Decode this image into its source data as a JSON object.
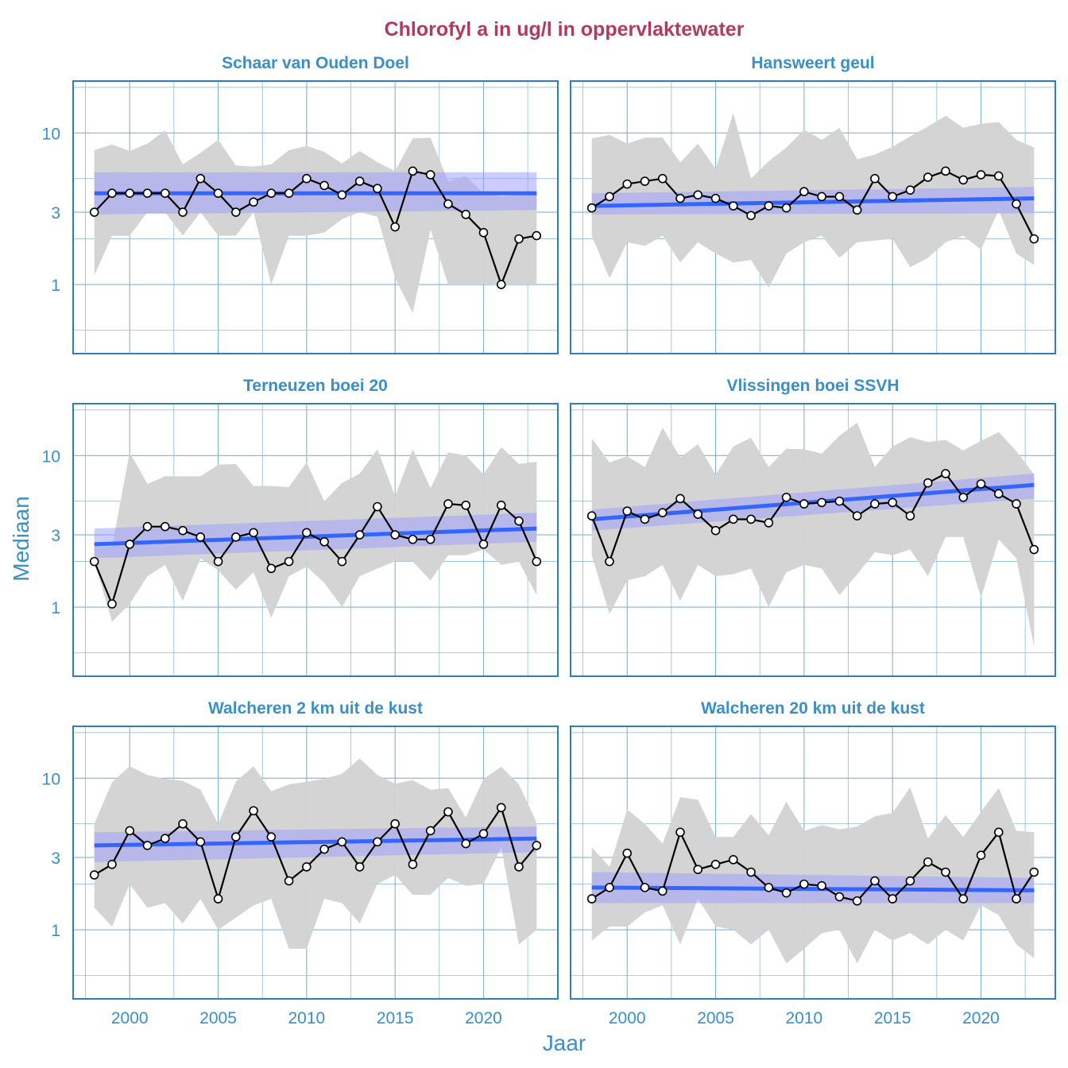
{
  "title": "Chlorofyl a in ug/l in oppervlaktewater",
  "xlabel": "Jaar",
  "ylabel": "Mediaan",
  "colors": {
    "title": "#b23a5e",
    "text": "#3a8fc8",
    "grid": "#7fb3d5",
    "frame": "#2f7fb5",
    "band": "#d3d3d3",
    "trend": "#3366ff",
    "trend_ci": "#9999ff",
    "line": "#000000",
    "point_fill": "#ffffff"
  },
  "chart_data": {
    "type": "line",
    "y_scale": "log",
    "ylim": [
      0.35,
      22
    ],
    "xlim": [
      1996.8,
      2024.2
    ],
    "x_ticks": [
      2000,
      2005,
      2010,
      2015,
      2020
    ],
    "x_tick_labels": [
      "2000",
      "2005",
      "2010",
      "2015",
      "2020"
    ],
    "y_ticks": [
      1,
      3,
      10
    ],
    "y_tick_labels": [
      "1",
      "3",
      "10"
    ],
    "grid": true,
    "years": [
      1998,
      1999,
      2000,
      2001,
      2002,
      2003,
      2004,
      2005,
      2006,
      2007,
      2008,
      2009,
      2010,
      2011,
      2012,
      2013,
      2014,
      2015,
      2016,
      2017,
      2018,
      2019,
      2020,
      2021,
      2022,
      2023
    ],
    "panels": [
      {
        "name": "Schaar van Ouden Doel",
        "median": [
          3.0,
          4.0,
          4.0,
          4.0,
          4.0,
          3.0,
          5.0,
          4.0,
          3.0,
          3.5,
          4.0,
          4.0,
          5.0,
          4.5,
          3.9,
          4.8,
          4.3,
          2.4,
          5.6,
          5.3,
          3.4,
          2.9,
          2.2,
          1.0,
          2.0,
          2.1
        ],
        "lower": [
          1.15,
          2.1,
          2.1,
          3.0,
          3.0,
          2.1,
          3.0,
          2.1,
          2.1,
          3.0,
          1.0,
          2.1,
          2.1,
          2.2,
          2.7,
          3.0,
          2.8,
          1.1,
          0.65,
          2.3,
          1.0,
          1.0,
          1.0,
          1.0,
          1.0,
          1.0
        ],
        "upper": [
          7.7,
          8.4,
          7.6,
          8.5,
          10.4,
          6.2,
          7.4,
          9.0,
          6.1,
          6.0,
          6.2,
          7.7,
          8.2,
          7.5,
          6.3,
          7.6,
          6.4,
          5.6,
          9.2,
          9.3,
          4.8,
          5.2,
          4.0,
          3.8,
          3.9,
          4.1
        ],
        "trend": [
          4.0,
          4.0
        ],
        "trend_lower": [
          2.9,
          3.1
        ],
        "trend_upper": [
          5.5,
          5.5
        ]
      },
      {
        "name": "Hansweert geul",
        "median": [
          3.2,
          3.8,
          4.6,
          4.8,
          5.0,
          3.7,
          3.9,
          3.7,
          3.3,
          2.85,
          3.3,
          3.2,
          4.1,
          3.8,
          3.8,
          3.1,
          5.0,
          3.8,
          4.2,
          5.1,
          5.6,
          4.9,
          5.3,
          5.2,
          3.4,
          2.0
        ],
        "lower": [
          2.1,
          1.1,
          1.9,
          1.8,
          2.1,
          1.4,
          1.9,
          1.6,
          1.4,
          1.45,
          0.95,
          1.6,
          1.9,
          2.1,
          1.5,
          1.9,
          1.95,
          2.0,
          1.3,
          1.5,
          1.9,
          2.1,
          1.7,
          3.1,
          1.6,
          1.35
        ],
        "upper": [
          9.2,
          9.7,
          8.5,
          9.3,
          9.3,
          6.4,
          8.5,
          5.8,
          13.5,
          5.0,
          6.5,
          8.0,
          10.5,
          9.0,
          10.8,
          6.7,
          7.2,
          8.1,
          9.5,
          11.0,
          13.0,
          10.8,
          11.5,
          11.8,
          9.0,
          8.0
        ],
        "trend": [
          3.3,
          3.7
        ],
        "trend_lower": [
          2.9,
          2.95
        ],
        "trend_upper": [
          4.0,
          4.4
        ]
      },
      {
        "name": "Terneuzen boei 20",
        "median": [
          2.0,
          1.05,
          2.6,
          3.4,
          3.4,
          3.2,
          2.9,
          2.0,
          2.9,
          3.1,
          1.8,
          2.0,
          3.1,
          2.7,
          2.0,
          3.0,
          4.6,
          3.0,
          2.8,
          2.8,
          4.8,
          4.7,
          2.6,
          4.7,
          3.7,
          2.0
        ],
        "lower": [
          2.0,
          0.8,
          1.05,
          1.6,
          1.9,
          1.1,
          2.1,
          1.75,
          1.3,
          1.7,
          0.85,
          1.6,
          1.85,
          1.45,
          1.0,
          1.6,
          1.8,
          2.0,
          2.0,
          1.5,
          2.2,
          2.2,
          2.4,
          1.9,
          2.0,
          1.2
        ],
        "upper": [
          2.5,
          2.5,
          10.5,
          6.5,
          7.3,
          7.3,
          7.3,
          8.7,
          8.8,
          6.3,
          6.3,
          6.2,
          9.0,
          5.0,
          6.6,
          7.6,
          11.0,
          5.4,
          11.0,
          6.1,
          10.5,
          10.0,
          7.5,
          11.4,
          8.8,
          9.1
        ],
        "trend": [
          2.6,
          3.3
        ],
        "trend_lower": [
          2.1,
          2.7
        ],
        "trend_upper": [
          3.3,
          4.2
        ]
      },
      {
        "name": "Vlissingen boei SSVH",
        "median": [
          4.0,
          2.0,
          4.3,
          3.8,
          4.2,
          5.2,
          4.1,
          3.2,
          3.8,
          3.8,
          3.6,
          5.3,
          4.8,
          4.9,
          5.0,
          4.0,
          4.8,
          4.9,
          4.0,
          6.6,
          7.6,
          5.3,
          6.5,
          5.6,
          4.8,
          2.4
        ],
        "lower": [
          2.2,
          0.9,
          1.5,
          1.6,
          1.9,
          1.1,
          1.9,
          1.6,
          1.65,
          1.8,
          1.0,
          1.7,
          1.9,
          1.8,
          1.2,
          1.65,
          2.3,
          2.2,
          2.4,
          1.6,
          2.9,
          2.9,
          1.15,
          2.8,
          2.1,
          0.55
        ],
        "upper": [
          13.0,
          9.0,
          9.9,
          8.4,
          15.3,
          9.7,
          11.9,
          7.5,
          11.5,
          13.1,
          8.4,
          11.1,
          11.0,
          10.3,
          13.5,
          16.5,
          8.4,
          11.5,
          13.2,
          12.3,
          12.7,
          10.8,
          12.5,
          14.3,
          10.7,
          7.5
        ],
        "trend": [
          3.8,
          6.4
        ],
        "trend_lower": [
          3.2,
          5.2
        ],
        "trend_upper": [
          4.4,
          7.6
        ]
      },
      {
        "name": "Walcheren 2 km uit de kust",
        "median": [
          2.3,
          2.7,
          4.5,
          3.6,
          4.0,
          5.0,
          3.8,
          1.6,
          4.1,
          6.1,
          4.1,
          2.1,
          2.6,
          3.4,
          3.8,
          2.6,
          3.8,
          5.0,
          2.7,
          4.5,
          6.0,
          3.7,
          4.3,
          6.4,
          2.6,
          3.6
        ],
        "lower": [
          1.4,
          1.05,
          2.0,
          1.4,
          1.5,
          1.1,
          1.6,
          1.0,
          1.2,
          1.45,
          1.6,
          0.75,
          0.75,
          1.6,
          1.5,
          1.1,
          2.0,
          2.3,
          1.7,
          1.7,
          2.2,
          1.95,
          2.0,
          3.5,
          0.8,
          1.0
        ],
        "upper": [
          5.0,
          9.4,
          12.0,
          10.5,
          9.9,
          9.6,
          8.4,
          5.0,
          9.5,
          12.0,
          8.2,
          9.1,
          9.5,
          9.9,
          10.7,
          13.5,
          10.5,
          9.2,
          9.7,
          8.4,
          8.6,
          5.5,
          9.9,
          11.9,
          9.1,
          5.1
        ],
        "trend": [
          3.6,
          4.0
        ],
        "trend_lower": [
          2.8,
          3.25
        ],
        "trend_upper": [
          4.4,
          4.8
        ]
      },
      {
        "name": "Walcheren 20 km uit de kust",
        "median": [
          1.6,
          1.9,
          3.2,
          1.9,
          1.8,
          4.4,
          2.5,
          2.7,
          2.9,
          2.4,
          1.9,
          1.75,
          2.0,
          1.95,
          1.65,
          1.55,
          2.1,
          1.6,
          2.1,
          2.8,
          2.4,
          1.6,
          3.1,
          4.4,
          1.6,
          2.4
        ],
        "lower": [
          0.85,
          1.05,
          1.05,
          1.3,
          1.45,
          0.8,
          1.6,
          1.05,
          1.0,
          0.8,
          1.0,
          0.6,
          0.75,
          0.95,
          1.0,
          0.6,
          1.0,
          0.85,
          0.95,
          0.8,
          1.0,
          0.85,
          1.45,
          1.25,
          0.8,
          0.65
        ],
        "upper": [
          3.5,
          2.6,
          6.2,
          5.0,
          3.7,
          7.5,
          7.2,
          4.1,
          4.1,
          5.8,
          4.2,
          7.0,
          4.5,
          4.9,
          4.6,
          4.8,
          5.6,
          5.9,
          8.7,
          4.0,
          5.7,
          4.1,
          6.0,
          8.6,
          4.5,
          4.4
        ],
        "trend": [
          1.9,
          1.82
        ],
        "trend_lower": [
          1.5,
          1.5
        ],
        "trend_upper": [
          2.4,
          2.2
        ]
      }
    ]
  }
}
